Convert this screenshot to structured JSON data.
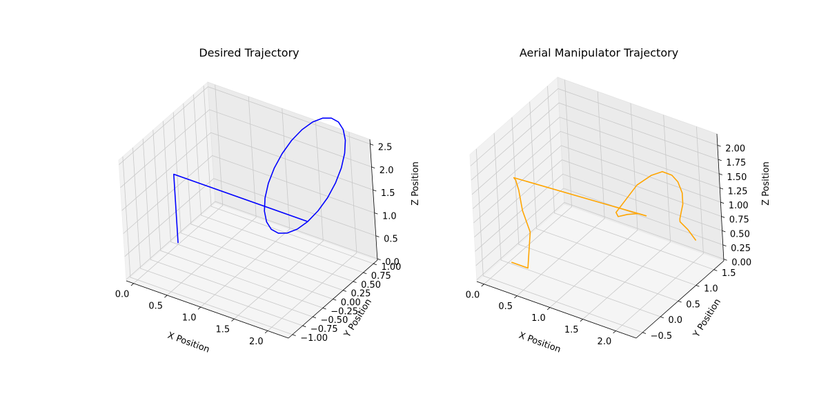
{
  "chart_data": [
    {
      "type": "line",
      "projection": "3d",
      "title": "Desired Trajectory",
      "xlabel": "X Position",
      "ylabel": "Y Position",
      "zlabel": "Z Position",
      "xlim": [
        -0.11,
        2.31
      ],
      "ylim": [
        -1.1,
        1.1
      ],
      "zlim": [
        -0.03,
        2.6
      ],
      "xticks": [
        0.0,
        0.5,
        1.0,
        1.5,
        2.0
      ],
      "xtick_labels": [
        "0.0",
        "0.5",
        "1.0",
        "1.5",
        "2.0"
      ],
      "yticks": [
        -1.0,
        -0.75,
        -0.5,
        -0.25,
        0.0,
        0.25,
        0.5,
        0.75,
        1.0
      ],
      "ytick_labels": [
        "−1.00",
        "−0.75",
        "−0.50",
        "−0.25",
        "0.00",
        "0.25",
        "0.50",
        "0.75",
        "1.00"
      ],
      "zticks": [
        0.0,
        0.5,
        1.0,
        1.5,
        2.0,
        2.5
      ],
      "ztick_labels": [
        "0.0",
        "0.5",
        "1.0",
        "1.5",
        "2.0",
        "2.5"
      ],
      "grid": true,
      "series": [
        {
          "color": "#0000ff",
          "x": [
            0,
            0,
            2.0,
            2.0,
            2.0,
            2.0,
            2.0,
            2.0,
            2.0,
            2.0,
            2.0,
            2.0,
            2.0,
            2.0,
            2.0,
            2.0,
            2.0,
            2.0,
            2.0,
            2.0,
            2.0,
            2.0,
            2.0,
            2.0,
            2.0,
            2.0,
            2.0,
            2.0,
            2.0,
            2.0,
            2.0,
            2.0,
            2.0,
            2.0,
            2.0,
            2.0,
            2.0,
            2.0,
            2.0,
            2.0,
            2.0,
            2.0
          ],
          "y": [
            0,
            0,
            0,
            0.259,
            0.5,
            0.707,
            0.866,
            0.966,
            1.0,
            0.966,
            0.866,
            0.707,
            0.5,
            0.259,
            0.0,
            -0.259,
            -0.5,
            -0.707,
            -0.866,
            -0.966,
            -1.0,
            -0.966,
            -0.866,
            -0.707,
            -0.5,
            -0.259,
            0.0,
            0.259,
            0.5,
            0.707,
            0.866,
            0.966,
            1.0,
            0.966,
            0.866,
            0.707,
            0.5,
            0.259,
            0.0,
            0.259,
            0.5,
            0.707
          ],
          "z": [
            0,
            1.5,
            1.5,
            1.534,
            1.634,
            1.793,
            2.0,
            2.241,
            2.5,
            2.759,
            3.0,
            3.207,
            3.366,
            3.466,
            3.5,
            3.466,
            3.366,
            3.207,
            3.0,
            2.759,
            2.5,
            2.241,
            2.0,
            1.793,
            1.634,
            1.534,
            1.5,
            1.534,
            1.634,
            1.793,
            2.0,
            2.241,
            2.5,
            2.759,
            3.0,
            3.207,
            3.366,
            3.466,
            3.5,
            3.466,
            3.366,
            3.207
          ]
        }
      ]
    },
    {
      "type": "line",
      "projection": "3d",
      "title": "Aerial Manipulator Trajectory",
      "xlabel": "X Position",
      "ylabel": "Y Position",
      "zlabel": "Z Position",
      "xlim": [
        -0.11,
        2.31
      ],
      "ylim": [
        -0.68,
        1.78
      ],
      "zlim": [
        -0.03,
        2.2
      ],
      "xticks": [
        0.0,
        0.5,
        1.0,
        1.5,
        2.0
      ],
      "xtick_labels": [
        "0.0",
        "0.5",
        "1.0",
        "1.5",
        "2.0"
      ],
      "yticks": [
        -0.5,
        0.0,
        0.5,
        1.0,
        1.5
      ],
      "ytick_labels": [
        "−0.5",
        "0.0",
        "0.5",
        "1.0",
        "1.5"
      ],
      "zticks": [
        0.0,
        0.25,
        0.5,
        0.75,
        1.0,
        1.25,
        1.5,
        1.75,
        2.0
      ],
      "ztick_labels": [
        "0.00",
        "0.25",
        "0.50",
        "0.75",
        "1.00",
        "1.25",
        "1.50",
        "1.75",
        "2.00"
      ],
      "grid": true,
      "series": [
        {
          "color": "#ffa500",
          "x": [
            0.05,
            0.3,
            0.25,
            0.12,
            0.05,
            0.04,
            0.08,
            0.1,
            2.0,
            2.0,
            2.0,
            2.0,
            2.0,
            2.0,
            2.0,
            2.0,
            2.0,
            2.0,
            2.0,
            2.0,
            2.0,
            2.0,
            2.0,
            2.0,
            2.0,
            2.0
          ],
          "y": [
            0.0,
            0.0,
            0.2,
            0.25,
            0.3,
            0.25,
            0.15,
            0.1,
            0.3,
            0.1,
            -0.2,
            -0.45,
            -0.5,
            -0.3,
            0.1,
            0.5,
            0.8,
            1.05,
            1.2,
            1.3,
            1.3,
            1.25,
            1.2,
            1.2,
            1.4,
            1.6
          ],
          "z": [
            0.0,
            0.0,
            0.5,
            0.8,
            1.1,
            1.3,
            1.4,
            1.45,
            1.45,
            1.6,
            1.75,
            1.85,
            1.95,
            2.0,
            2.1,
            2.05,
            1.95,
            1.75,
            1.55,
            1.3,
            1.1,
            1.0,
            0.9,
            0.85,
            0.6,
            0.3
          ]
        }
      ]
    }
  ]
}
